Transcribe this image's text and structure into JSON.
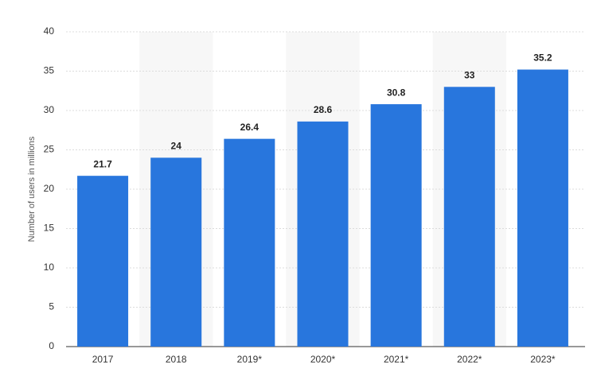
{
  "chart_data": {
    "type": "bar",
    "y_label": "Number of users in millions",
    "categories": [
      "2017",
      "2018",
      "2019*",
      "2020*",
      "2021*",
      "2022*",
      "2023*"
    ],
    "values": [
      21.7,
      24,
      26.4,
      28.6,
      30.8,
      33,
      35.2
    ],
    "color": "#2876dd",
    "ylim": [
      0,
      40
    ],
    "yticks": [
      0,
      5,
      10,
      15,
      20,
      25,
      30,
      35,
      40
    ],
    "grid": true
  }
}
